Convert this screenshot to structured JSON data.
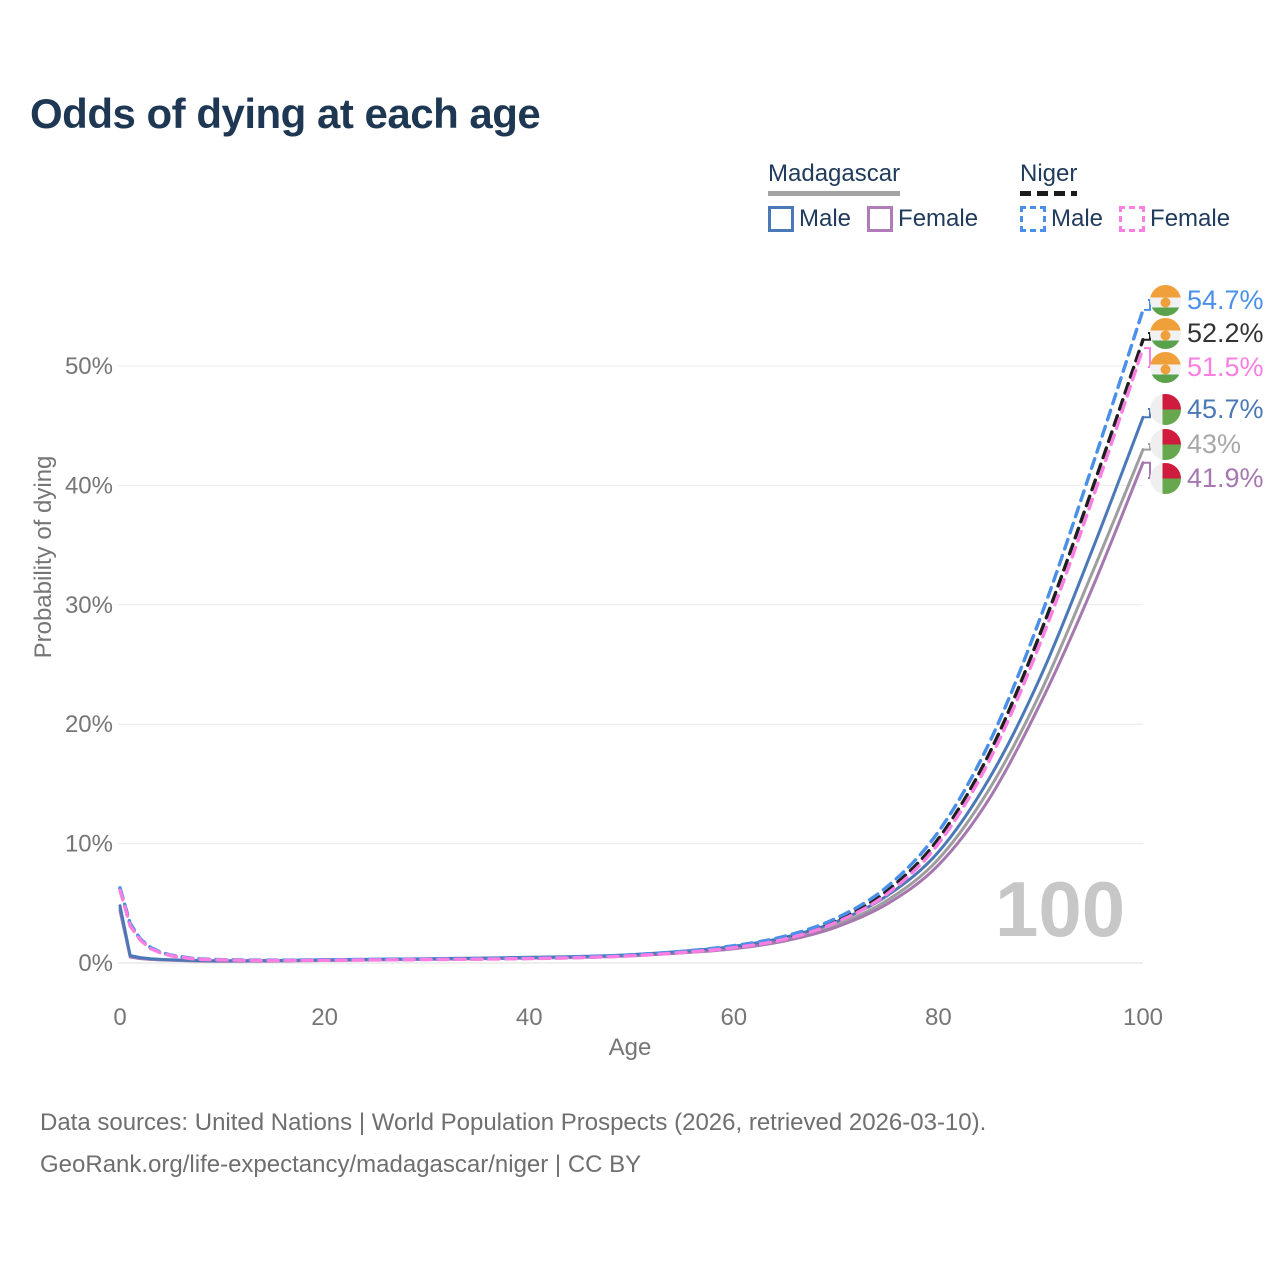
{
  "header": {
    "title": "Odds of dying at each age"
  },
  "legend": {
    "groups": [
      {
        "country": "Madagascar",
        "line_style": "solid",
        "all_line_color": "#a3a3a3",
        "items": [
          {
            "label": "Male",
            "color": "#4b79b7"
          },
          {
            "label": "Female",
            "color": "#b07cb8"
          }
        ]
      },
      {
        "country": "Niger",
        "line_style": "dashed",
        "all_line_color": "#1b1b1b",
        "items": [
          {
            "label": "Male",
            "color": "#4a90e8"
          },
          {
            "label": "Female",
            "color": "#fb7ee2"
          }
        ]
      }
    ]
  },
  "watermark": {
    "text": "100"
  },
  "end_labels": [
    {
      "value": "54.7%",
      "color": "#4a90e8",
      "flag": "niger"
    },
    {
      "value": "52.2%",
      "color": "#333333",
      "flag": "niger"
    },
    {
      "value": "51.5%",
      "color": "#fb7ee2",
      "flag": "niger"
    },
    {
      "value": "45.7%",
      "color": "#4b79b7",
      "flag": "madagascar"
    },
    {
      "value": "43%",
      "color": "#a8a8a8",
      "flag": "madagascar"
    },
    {
      "value": "41.9%",
      "color": "#a578b0",
      "flag": "madagascar"
    }
  ],
  "footer": {
    "line1": "Data sources: United Nations | World Population Prospects (2026, retrieved 2026-03-10).",
    "line2": "GeoRank.org/life-expectancy/madagascar/niger | CC BY"
  },
  "chart_data": {
    "type": "line",
    "title": "Odds of dying at each age",
    "xlabel": "Age",
    "ylabel": "Probability of dying",
    "xlim": [
      0,
      100
    ],
    "ylim": [
      0,
      57
    ],
    "grid": true,
    "legend_position": "top-right",
    "xticks": [
      0,
      20,
      40,
      60,
      80,
      100
    ],
    "ytick_values": [
      0,
      10,
      20,
      30,
      40,
      50
    ],
    "ytick_labels": [
      "0%",
      "10%",
      "20%",
      "30%",
      "40%",
      "50%"
    ],
    "x": [
      0,
      1,
      2,
      3,
      4,
      5,
      7,
      10,
      15,
      20,
      25,
      30,
      35,
      40,
      45,
      50,
      55,
      60,
      65,
      70,
      75,
      80,
      85,
      90,
      95,
      100
    ],
    "series": [
      {
        "id": "niger-male",
        "country": "Niger",
        "group": "Male",
        "color": "#4a90e8",
        "dash": true,
        "end_label": "54.7%",
        "values": [
          6.3,
          3.3,
          2.0,
          1.3,
          0.9,
          0.65,
          0.4,
          0.28,
          0.24,
          0.27,
          0.3,
          0.33,
          0.36,
          0.41,
          0.5,
          0.68,
          0.98,
          1.45,
          2.25,
          3.75,
          6.4,
          11.0,
          18.5,
          29.0,
          41.5,
          54.7
        ]
      },
      {
        "id": "niger-all",
        "country": "Niger",
        "group": "All",
        "color": "#1f1f1f",
        "dash": true,
        "end_label": "52.2%",
        "values": [
          6.2,
          3.2,
          1.95,
          1.25,
          0.87,
          0.62,
          0.38,
          0.26,
          0.22,
          0.25,
          0.28,
          0.31,
          0.34,
          0.39,
          0.47,
          0.63,
          0.92,
          1.36,
          2.12,
          3.55,
          6.05,
          10.4,
          17.6,
          27.7,
          39.6,
          52.2
        ]
      },
      {
        "id": "niger-female",
        "country": "Niger",
        "group": "Female",
        "color": "#fb7ee2",
        "dash": true,
        "end_label": "51.5%",
        "values": [
          6.1,
          3.1,
          1.9,
          1.2,
          0.84,
          0.6,
          0.36,
          0.25,
          0.21,
          0.23,
          0.26,
          0.29,
          0.32,
          0.37,
          0.45,
          0.6,
          0.88,
          1.28,
          2.0,
          3.4,
          5.8,
          10.0,
          17.0,
          26.9,
          38.7,
          51.5
        ]
      },
      {
        "id": "madagascar-male",
        "country": "Madagascar",
        "group": "Male",
        "color": "#4b79b7",
        "dash": false,
        "end_label": "45.7%",
        "values": [
          4.8,
          0.62,
          0.45,
          0.36,
          0.3,
          0.27,
          0.22,
          0.19,
          0.21,
          0.27,
          0.32,
          0.36,
          0.41,
          0.48,
          0.55,
          0.7,
          0.98,
          1.4,
          2.15,
          3.45,
          5.65,
          9.3,
          15.5,
          24.0,
          34.5,
          45.7
        ]
      },
      {
        "id": "madagascar-all",
        "country": "Madagascar",
        "group": "All",
        "color": "#9e9e9e",
        "dash": false,
        "end_label": "43%",
        "values": [
          4.6,
          0.56,
          0.41,
          0.33,
          0.28,
          0.25,
          0.2,
          0.17,
          0.19,
          0.24,
          0.29,
          0.33,
          0.38,
          0.44,
          0.51,
          0.65,
          0.92,
          1.3,
          2.0,
          3.2,
          5.25,
          8.7,
          14.6,
          22.7,
          32.6,
          43.0
        ]
      },
      {
        "id": "madagascar-female",
        "country": "Madagascar",
        "group": "Female",
        "color": "#a578b0",
        "dash": false,
        "end_label": "41.9%",
        "values": [
          4.4,
          0.5,
          0.37,
          0.3,
          0.26,
          0.23,
          0.18,
          0.15,
          0.17,
          0.21,
          0.26,
          0.3,
          0.35,
          0.41,
          0.47,
          0.6,
          0.85,
          1.2,
          1.85,
          3.0,
          4.95,
          8.2,
          13.8,
          21.8,
          31.3,
          41.9
        ]
      }
    ]
  }
}
